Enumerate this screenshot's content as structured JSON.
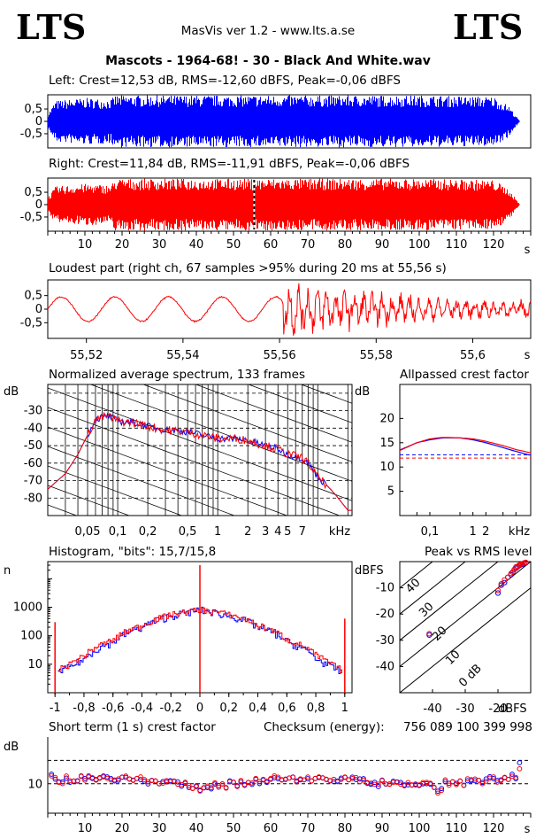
{
  "header": {
    "logo_left": "LTS",
    "logo_right": "LTS",
    "app_title": "MasVis ver 1.2 - www.lts.a.se",
    "file_title": "Mascots - 1964-68! - 30 - Black And White.wav"
  },
  "colors": {
    "left": "#0000ff",
    "right": "#ff0000",
    "axes": "#000000"
  },
  "chart_data": [
    {
      "id": "left_waveform",
      "type": "area",
      "title": "Left: Crest=12,53 dB, RMS=-12,60 dBFS, Peak=-0,06 dBFS",
      "yticks": [
        "0,5",
        "0",
        "-0,5"
      ],
      "ylim": [
        -1,
        1
      ],
      "xlim": [
        0,
        130
      ],
      "envelope": {
        "t": [
          0,
          2,
          10,
          17,
          18,
          20,
          40,
          60,
          80,
          100,
          120,
          124,
          126,
          127
        ],
        "peak": [
          0.3,
          0.8,
          0.9,
          0.85,
          1.0,
          1.0,
          1.0,
          1.0,
          1.0,
          1.0,
          0.95,
          0.6,
          0.2,
          0
        ]
      },
      "series": [
        {
          "name": "Left",
          "color": "#0000ff"
        }
      ]
    },
    {
      "id": "right_waveform",
      "type": "area",
      "title": "Right: Crest=11,84 dB, RMS=-11,91 dBFS, Peak=-0,06 dBFS",
      "yticks": [
        "0,5",
        "0",
        "-0,5"
      ],
      "ylim": [
        -1,
        1
      ],
      "xlim": [
        0,
        130
      ],
      "xticks": [
        "10",
        "20",
        "30",
        "40",
        "50",
        "60",
        "70",
        "80",
        "90",
        "100",
        "110",
        "120"
      ],
      "xunit": "s",
      "marker_s": 55.56,
      "envelope": {
        "t": [
          0,
          2,
          10,
          17,
          18,
          20,
          40,
          60,
          80,
          100,
          120,
          124,
          126,
          127
        ],
        "peak": [
          0.3,
          0.7,
          0.8,
          0.75,
          1.0,
          1.0,
          1.0,
          1.0,
          1.0,
          1.0,
          0.95,
          0.6,
          0.2,
          0
        ]
      },
      "series": [
        {
          "name": "Right",
          "color": "#ff0000"
        }
      ]
    },
    {
      "id": "loudest_part",
      "type": "line",
      "title": "Loudest part (right ch, 67 samples >95% during 20 ms at 55,56 s)",
      "yticks": [
        "0,5",
        "0",
        "-0,5"
      ],
      "ylim": [
        -1,
        1
      ],
      "xlim": [
        55.512,
        55.612
      ],
      "xticks": [
        "55,52",
        "55,54",
        "55,56",
        "55,58",
        "55,6"
      ],
      "xunit": "s",
      "onset_s": 55.5605,
      "series": [
        {
          "name": "Right",
          "color": "#ff0000"
        }
      ]
    },
    {
      "id": "avg_spectrum",
      "type": "line",
      "title": "Normalized average spectrum, 133 frames",
      "ylabel": "dB",
      "yticks": [
        "-30",
        "-40",
        "-50",
        "-60",
        "-70",
        "-80"
      ],
      "ylim": [
        -90,
        -15
      ],
      "xscale": "log",
      "xlim_khz": [
        0.02,
        22
      ],
      "xticks": [
        "0,05",
        "0,1",
        "0,2",
        "0,5",
        "1",
        "2",
        "3",
        "4",
        "5",
        "7"
      ],
      "xunit": "kHz",
      "series": [
        {
          "name": "Left",
          "color": "#0000ff",
          "x_khz": [
            0.02,
            0.03,
            0.04,
            0.05,
            0.06,
            0.08,
            0.1,
            0.15,
            0.2,
            0.3,
            0.5,
            0.7,
            1,
            1.5,
            2,
            3,
            4,
            5,
            6,
            7,
            8,
            10,
            12,
            15,
            20
          ],
          "y": [
            -75,
            -66,
            -55,
            -44,
            -35,
            -33,
            -36,
            -37,
            -39,
            -41,
            -42,
            -44,
            -46,
            -46,
            -47,
            -50,
            -52,
            -55,
            -56,
            -57,
            -60,
            -68,
            -72,
            -78,
            -87
          ]
        },
        {
          "name": "Right",
          "color": "#ff0000",
          "x_khz": [
            0.02,
            0.03,
            0.04,
            0.05,
            0.06,
            0.08,
            0.1,
            0.15,
            0.2,
            0.3,
            0.5,
            0.7,
            1,
            1.5,
            2,
            3,
            4,
            5,
            6,
            7,
            8,
            10,
            12,
            15,
            20
          ],
          "y": [
            -75,
            -66,
            -55,
            -44,
            -35,
            -33,
            -36,
            -37,
            -39,
            -41,
            -42,
            -44,
            -46,
            -46,
            -47,
            -50,
            -52,
            -55,
            -56,
            -57,
            -60,
            -68,
            -72,
            -78,
            -87
          ]
        }
      ]
    },
    {
      "id": "allpassed_crest",
      "type": "line",
      "title": "Allpassed crest factor",
      "ylabel": "dB",
      "yticks": [
        "20",
        "15",
        "10",
        "5"
      ],
      "ylim": [
        0,
        27
      ],
      "xscale": "log",
      "xlim_khz": [
        0.02,
        22
      ],
      "xticks": [
        "0,1",
        "1",
        "2"
      ],
      "xunit": "kHz",
      "reference_db": {
        "left": 12.53,
        "right": 11.84
      },
      "series": [
        {
          "name": "Left",
          "color": "#0000ff",
          "x_khz": [
            0.02,
            0.05,
            0.1,
            0.2,
            0.5,
            1,
            2,
            5,
            10,
            20
          ],
          "y": [
            13.5,
            15,
            15.6,
            16,
            16,
            15.6,
            15,
            14,
            13.2,
            12.5
          ]
        },
        {
          "name": "Right",
          "color": "#ff0000",
          "x_khz": [
            0.02,
            0.05,
            0.1,
            0.2,
            0.5,
            1,
            2,
            5,
            10,
            20
          ],
          "y": [
            13.4,
            15,
            15.8,
            16.1,
            16,
            15.8,
            15.3,
            14.4,
            13.6,
            13
          ]
        }
      ]
    },
    {
      "id": "histogram",
      "type": "line",
      "title": "Histogram, \"bits\": 15,7/15,8",
      "ylabel": "n",
      "yscale": "log",
      "yticks": [
        "1000",
        "100",
        "10"
      ],
      "ylim": [
        1,
        40000
      ],
      "xlim": [
        -1.05,
        1.05
      ],
      "xticks": [
        "-1",
        "-0,8",
        "-0,6",
        "-0,4",
        "-0,2",
        "0",
        "0,2",
        "0,4",
        "0,6",
        "0,8",
        "1"
      ],
      "series": [
        {
          "name": "Left",
          "color": "#0000ff",
          "x": [
            -0.98,
            -0.9,
            -0.8,
            -0.6,
            -0.4,
            -0.2,
            0,
            0.2,
            0.4,
            0.6,
            0.8,
            0.9,
            0.98
          ],
          "y": [
            5,
            8,
            15,
            60,
            200,
            500,
            800,
            500,
            200,
            60,
            15,
            8,
            5
          ]
        },
        {
          "name": "Right",
          "color": "#ff0000",
          "x": [
            -0.98,
            -0.9,
            -0.8,
            -0.6,
            -0.4,
            -0.2,
            0,
            0.2,
            0.4,
            0.6,
            0.8,
            0.9,
            0.98
          ],
          "y": [
            6,
            10,
            20,
            70,
            230,
            550,
            820,
            550,
            230,
            70,
            20,
            10,
            6
          ]
        }
      ],
      "spikes": [
        {
          "x": -1,
          "y": 300
        },
        {
          "x": 0,
          "y": 30000
        },
        {
          "x": 1,
          "y": 400
        }
      ]
    },
    {
      "id": "peak_vs_rms",
      "type": "scatter",
      "title": "Peak vs RMS level",
      "ylabel": "dBFS",
      "xlabel": "dBFS",
      "yticks": [
        "-10",
        "-20",
        "-30",
        "-40"
      ],
      "ylim": [
        -50,
        0
      ],
      "xticks": [
        "-40",
        "-30",
        "-20"
      ],
      "xlim": [
        -50,
        -10
      ],
      "crest_lines": [
        "40",
        "30",
        "20",
        "10",
        "0 dB"
      ],
      "series": [
        {
          "name": "Left",
          "color": "#0000ff",
          "x": [
            -41,
            -20,
            -19,
            -18,
            -17,
            -16,
            -15.5,
            -15,
            -14.5,
            -14,
            -13.5,
            -13,
            -12.5,
            -12,
            -11.5
          ],
          "y": [
            -28,
            -12,
            -9,
            -8,
            -6,
            -5,
            -4,
            -3,
            -2.5,
            -2,
            -1.5,
            -1.2,
            -1,
            -0.8,
            -0.5
          ]
        },
        {
          "name": "Right",
          "color": "#ff0000",
          "x": [
            -41,
            -20,
            -19,
            -18,
            -17,
            -16,
            -15.5,
            -15,
            -14.5,
            -14,
            -13.5,
            -13,
            -12.5,
            -12,
            -11.5
          ],
          "y": [
            -27.5,
            -11,
            -8.5,
            -7,
            -6,
            -4.5,
            -4,
            -3,
            -2,
            -1.8,
            -1.3,
            -1,
            -0.8,
            -0.5,
            -0.3
          ]
        }
      ]
    },
    {
      "id": "short_term_crest",
      "type": "scatter",
      "title": "Short term (1 s) crest factor",
      "checksum_label": "Checksum (energy):",
      "checksum_value": "756 089 100 399 998",
      "ylabel": "dB",
      "yticks": [
        "10"
      ],
      "ylim": [
        5,
        20
      ],
      "reference_db": [
        15,
        10
      ],
      "xlim": [
        0,
        130
      ],
      "xticks": [
        "10",
        "20",
        "30",
        "40",
        "50",
        "60",
        "70",
        "80",
        "90",
        "100",
        "110",
        "120"
      ],
      "xunit": "s",
      "series": [
        {
          "name": "Left",
          "color": "#0000ff"
        },
        {
          "name": "Right",
          "color": "#ff0000"
        }
      ]
    }
  ]
}
